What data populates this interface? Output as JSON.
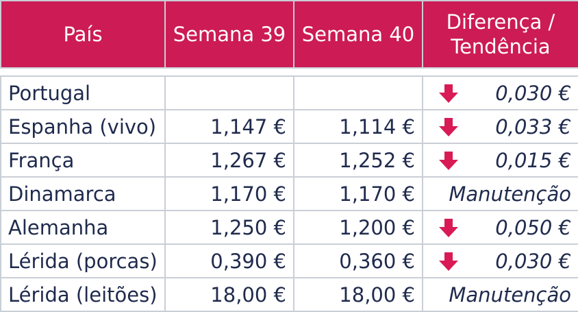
{
  "table": {
    "headers": [
      "País",
      "Semana 39",
      "Semana 40",
      "Diferença /\nTendência"
    ],
    "rows": [
      {
        "country": "Portugal",
        "w39": "",
        "w40": "",
        "trend": "0,030 €",
        "direction": "down"
      },
      {
        "country": "Espanha (vivo)",
        "w39": "1,147 €",
        "w40": "1,114 €",
        "trend": "0,033 €",
        "direction": "down"
      },
      {
        "country": "França",
        "w39": "1,267 €",
        "w40": "1,252 €",
        "trend": "0,015 €",
        "direction": "down"
      },
      {
        "country": "Dinamarca",
        "w39": "1,170 €",
        "w40": "1,170 €",
        "trend": "Manutenção",
        "direction": "none"
      },
      {
        "country": "Alemanha",
        "w39": "1,250 €",
        "w40": "1,200 €",
        "trend": "0,050 €",
        "direction": "down"
      },
      {
        "country": "Lérida (porcas)",
        "w39": "0,390 €",
        "w40": "0,360 €",
        "trend": "0,030 €",
        "direction": "down"
      },
      {
        "country": "Lérida (leitões)",
        "w39": "18,00 €",
        "w40": "18,00 €",
        "trend": "Manutenção",
        "direction": "none"
      }
    ]
  },
  "colors": {
    "header_bg": "#cc1b55",
    "arrow": "#d81b55",
    "text": "#1f2a4d",
    "border": "#c9ced6"
  }
}
